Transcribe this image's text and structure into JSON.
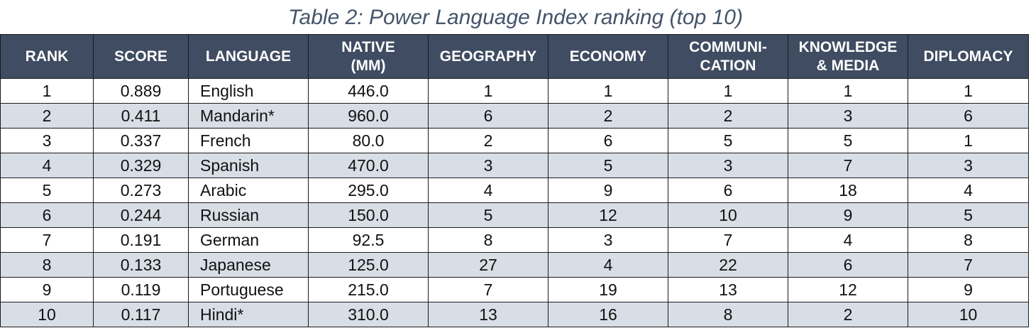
{
  "caption": "Table 2: Power Language Index ranking (top 10)",
  "chart_data": {
    "type": "table",
    "title": "Table 2: Power Language Index ranking (top 10)",
    "columns": [
      "RANK",
      "SCORE",
      "LANGUAGE",
      "NATIVE\n(MM)",
      "GEOGRAPHY",
      "ECONOMY",
      "COMMUNI-\nCATION",
      "KNOWLEDGE\n& MEDIA",
      "DIPLOMACY"
    ],
    "rows": [
      [
        "1",
        "0.889",
        "English",
        "446.0",
        "1",
        "1",
        "1",
        "1",
        "1"
      ],
      [
        "2",
        "0.411",
        "Mandarin*",
        "960.0",
        "6",
        "2",
        "2",
        "3",
        "6"
      ],
      [
        "3",
        "0.337",
        "French",
        "80.0",
        "2",
        "6",
        "5",
        "5",
        "1"
      ],
      [
        "4",
        "0.329",
        "Spanish",
        "470.0",
        "3",
        "5",
        "3",
        "7",
        "3"
      ],
      [
        "5",
        "0.273",
        "Arabic",
        "295.0",
        "4",
        "9",
        "6",
        "18",
        "4"
      ],
      [
        "6",
        "0.244",
        "Russian",
        "150.0",
        "5",
        "12",
        "10",
        "9",
        "5"
      ],
      [
        "7",
        "0.191",
        "German",
        "92.5",
        "8",
        "3",
        "7",
        "4",
        "8"
      ],
      [
        "8",
        "0.133",
        "Japanese",
        "125.0",
        "27",
        "4",
        "22",
        "6",
        "7"
      ],
      [
        "9",
        "0.119",
        "Portuguese",
        "215.0",
        "7",
        "19",
        "13",
        "12",
        "9"
      ],
      [
        "10",
        "0.117",
        "Hindi*",
        "310.0",
        "13",
        "16",
        "8",
        "2",
        "10"
      ]
    ]
  },
  "colors": {
    "header_bg": "#3f4c61",
    "header_text": "#ffffff",
    "stripe_bg": "#d8dee6",
    "caption_text": "#44546a"
  }
}
